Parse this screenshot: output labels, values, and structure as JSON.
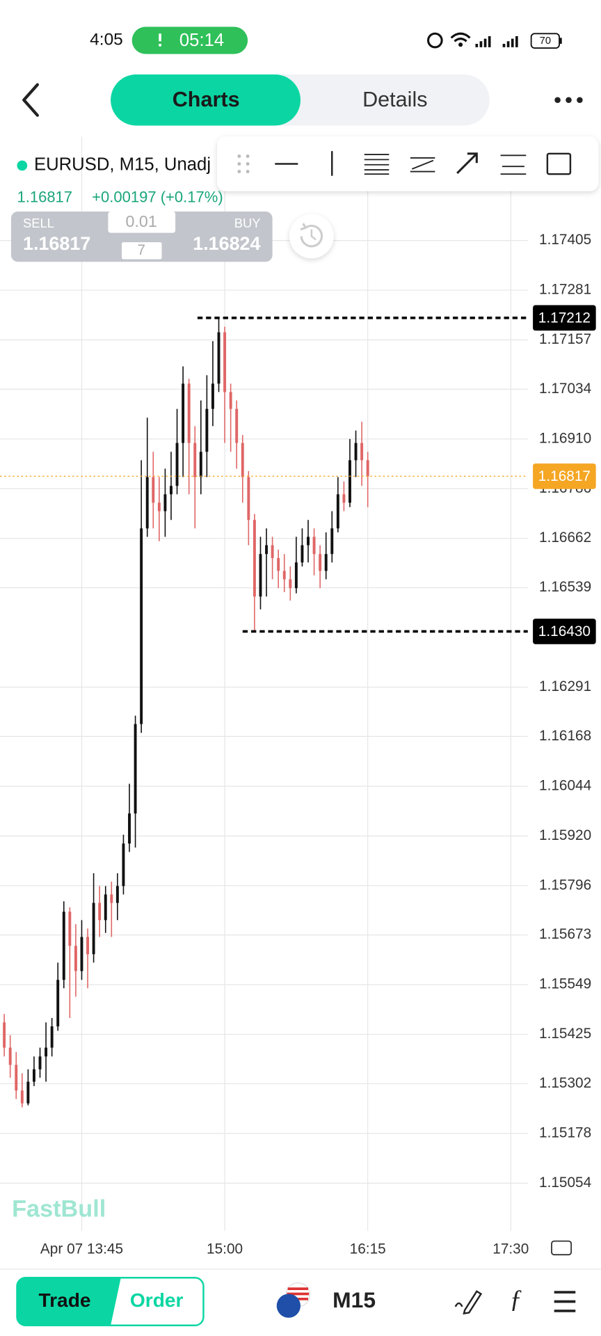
{
  "status_bar": {
    "time": "4:05",
    "timer": "05:14",
    "battery": "70"
  },
  "tabs": [
    "Charts",
    "Details"
  ],
  "chart_data": {
    "type": "candlestick",
    "title": "EURUSD, M15, Unadj",
    "quote": {
      "price": "1.16817",
      "change": "+0.00197 (+0.17%)",
      "sell_label": "SELL",
      "sell": "1.16817",
      "buy_label": "BUY",
      "buy": "1.16824",
      "lot": "0.01",
      "qty": "7"
    },
    "watermark": "FastBull",
    "up_color": "#111111",
    "down_color": "#e06666",
    "categories": [
      null,
      null,
      null,
      null,
      null,
      null,
      null,
      null,
      null,
      null,
      null,
      null,
      null,
      "Apr 07 13:45",
      null,
      null,
      null,
      null,
      null,
      null,
      null,
      null,
      null,
      null,
      null,
      null,
      null,
      null,
      null,
      null,
      null,
      null,
      null,
      null,
      null,
      null,
      null,
      "15:00",
      null,
      null,
      null,
      null,
      null,
      null,
      null,
      null,
      null,
      null,
      null,
      null,
      null,
      null,
      null,
      null,
      null,
      null,
      null,
      null,
      null,
      null,
      null,
      "16:15",
      null,
      null,
      null,
      null,
      null,
      null,
      null,
      null,
      null,
      null,
      null,
      null,
      null,
      null,
      null,
      null,
      null,
      null,
      null,
      null,
      null,
      null,
      null,
      "17:30"
    ],
    "open": [
      1.15455,
      1.15392,
      1.15349,
      1.15285,
      1.15253,
      1.15307,
      1.15338,
      1.1537,
      1.15392,
      1.15445,
      1.15561,
      1.15731,
      1.15646,
      1.15583,
      1.15668,
      1.15625,
      1.15753,
      1.1571,
      1.15774,
      1.15753,
      1.15795,
      1.15901,
      1.15976,
      1.16199,
      1.16687,
      1.16815,
      1.16751,
      1.1673,
      1.16772,
      1.16793,
      1.169,
      1.17048,
      1.169,
      1.16815,
      1.16878,
      1.16985,
      1.17048,
      1.17176,
      1.17027,
      1.16985,
      1.169,
      1.16815,
      1.16708,
      1.16517,
      1.16623,
      1.16645,
      1.16613,
      1.16581,
      1.1656,
      1.16538,
      1.16602,
      1.16645,
      1.16666,
      1.16623,
      1.16581,
      1.16623,
      1.16687,
      1.16772,
      1.16751,
      1.16857,
      1.169,
      1.16857,
      null,
      null,
      null,
      null,
      null,
      null,
      null,
      null,
      null,
      null,
      null,
      null,
      null,
      null,
      null,
      null,
      null,
      null,
      null,
      null,
      null,
      null,
      null,
      null
    ],
    "high": [
      1.15476,
      1.15423,
      1.15381,
      1.15328,
      1.15338,
      1.1537,
      1.15392,
      1.15455,
      1.15466,
      1.15604,
      1.15757,
      1.15742,
      1.157,
      1.1571,
      1.15689,
      1.15827,
      1.15795,
      1.15795,
      1.15806,
      1.15827,
      1.15923,
      1.1605,
      1.1622,
      1.16857,
      1.16963,
      1.16878,
      1.16815,
      1.16836,
      1.16878,
      1.16985,
      1.17091,
      1.1706,
      1.16942,
      1.17006,
      1.17069,
      1.17154,
      1.17212,
      1.1719,
      1.17048,
      1.17006,
      1.1692,
      1.1683,
      1.16723,
      1.16666,
      1.16687,
      1.16666,
      1.16634,
      1.16623,
      1.16592,
      1.16666,
      1.16687,
      1.16708,
      1.16687,
      1.16645,
      1.16677,
      1.1673,
      1.16815,
      1.16804,
      1.1691,
      1.16931,
      1.16953,
      1.16878,
      null,
      null,
      null,
      null,
      null,
      null,
      null,
      null,
      null,
      null,
      null,
      null,
      null,
      null,
      null,
      null,
      null,
      null,
      null,
      null,
      null,
      null,
      null,
      null
    ],
    "low": [
      1.1537,
      1.15317,
      1.15264,
      1.15243,
      1.15248,
      1.15296,
      1.15317,
      1.15307,
      1.1537,
      1.15434,
      1.1554,
      1.15466,
      1.15519,
      1.15561,
      1.1554,
      1.15604,
      1.15668,
      1.15678,
      1.15668,
      1.1571,
      1.15774,
      1.1588,
      1.15891,
      1.16177,
      1.16666,
      1.16687,
      1.16655,
      1.16666,
      1.16708,
      1.16772,
      1.16815,
      1.16772,
      1.16687,
      1.16772,
      1.16815,
      1.16942,
      1.17027,
      1.169,
      1.16878,
      1.16836,
      1.16751,
      1.16645,
      1.1643,
      1.16485,
      1.16517,
      1.1656,
      1.16538,
      1.16528,
      1.16507,
      1.16525,
      1.16592,
      1.16602,
      1.1657,
      1.16538,
      1.1656,
      1.16602,
      1.16677,
      1.1673,
      1.1674,
      1.16815,
      1.16793,
      1.1674,
      null,
      null,
      null,
      null,
      null,
      null,
      null,
      null,
      null,
      null,
      null,
      null,
      null,
      null,
      null,
      null,
      null,
      null,
      null,
      null,
      null,
      null,
      null,
      null
    ],
    "close": [
      1.15392,
      1.15349,
      1.15285,
      1.15253,
      1.15307,
      1.15338,
      1.1537,
      1.15392,
      1.15445,
      1.15561,
      1.15731,
      1.15646,
      1.15583,
      1.15668,
      1.15625,
      1.15753,
      1.1571,
      1.15774,
      1.15753,
      1.15795,
      1.15901,
      1.15976,
      1.16199,
      1.16687,
      1.16815,
      1.16751,
      1.1673,
      1.16772,
      1.16793,
      1.169,
      1.17048,
      1.169,
      1.16815,
      1.16878,
      1.16985,
      1.17048,
      1.17176,
      1.17027,
      1.16985,
      1.169,
      1.16815,
      1.16708,
      1.16517,
      1.16623,
      1.16645,
      1.16613,
      1.16581,
      1.1656,
      1.16538,
      1.16602,
      1.16645,
      1.16666,
      1.16623,
      1.16581,
      1.16623,
      1.16687,
      1.16772,
      1.16751,
      1.16857,
      1.169,
      1.16857,
      1.16817,
      null,
      null,
      null,
      null,
      null,
      null,
      null,
      null,
      null,
      null,
      null,
      null,
      null,
      null,
      null,
      null,
      null,
      null,
      null,
      null,
      null,
      null,
      null,
      null
    ],
    "ylim": [
      1.14935,
      1.17664
    ],
    "yticks": [
      {
        "value": 1.17405,
        "label": "1.17405"
      },
      {
        "value": 1.17281,
        "label": "1.17281"
      },
      {
        "value": 1.17157,
        "label": "1.17157"
      },
      {
        "value": 1.17034,
        "label": "1.17034"
      },
      {
        "value": 1.1691,
        "label": "1.16910"
      },
      {
        "value": 1.16786,
        "label": "1.16786"
      },
      {
        "value": 1.16662,
        "label": "1.16662"
      },
      {
        "value": 1.16539,
        "label": "1.16539"
      },
      {
        "value": 1.16291,
        "label": "1.16291"
      },
      {
        "value": 1.16168,
        "label": "1.16168"
      },
      {
        "value": 1.16044,
        "label": "1.16044"
      },
      {
        "value": 1.1592,
        "label": "1.15920"
      },
      {
        "value": 1.15796,
        "label": "1.15796"
      },
      {
        "value": 1.15673,
        "label": "1.15673"
      },
      {
        "value": 1.15549,
        "label": "1.15549"
      },
      {
        "value": 1.15425,
        "label": "1.15425"
      },
      {
        "value": 1.15302,
        "label": "1.15302"
      },
      {
        "value": 1.15178,
        "label": "1.15178"
      },
      {
        "value": 1.15054,
        "label": "1.15054"
      }
    ],
    "grid": true,
    "price_lines": [
      {
        "value": 1.17212,
        "label": "1.17212",
        "color": "#000000",
        "style": "dashed"
      },
      {
        "value": 1.16817,
        "label": "1.16817",
        "color": "#f5a623",
        "style": "dotted"
      },
      {
        "value": 1.1643,
        "label": "1.16430",
        "color": "#000000",
        "style": "dashed"
      }
    ]
  },
  "bottom_bar": {
    "trade": "Trade",
    "order": "Order",
    "timeframe": "M15"
  }
}
